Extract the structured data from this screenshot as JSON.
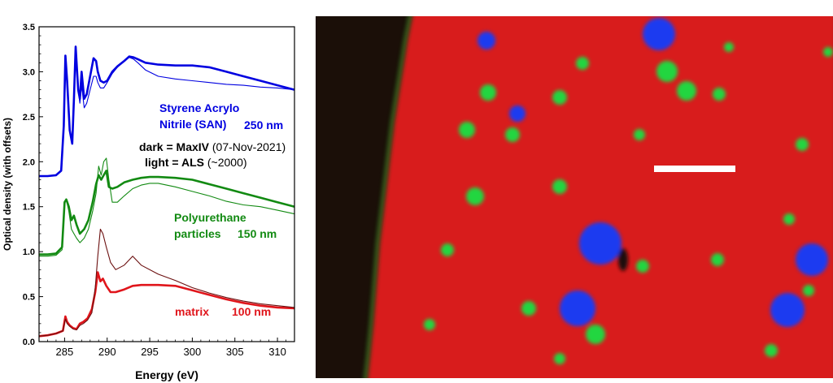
{
  "chart_data": {
    "type": "line",
    "xlabel": "Energy (eV)",
    "ylabel": "Optical density (with offsets)",
    "xlim": [
      282,
      312
    ],
    "ylim": [
      0,
      3.5
    ],
    "xticks": [
      285,
      290,
      295,
      300,
      305,
      310
    ],
    "yticks": [
      0.0,
      0.5,
      1.0,
      1.5,
      2.0,
      2.5,
      3.0,
      3.5
    ],
    "ytick_labels": [
      "0.0",
      "0.5",
      "1.0",
      "1.5",
      "2.0",
      "2.5",
      "3.0",
      "3.5"
    ],
    "grid": false,
    "annotations": {
      "san_line1": "Styrene Acrylo",
      "san_line2": "Nitrile (SAN)",
      "san_thickness": "250 nm",
      "dark_bold": "dark = MaxIV",
      "dark_rest": " (07-Nov-2021)",
      "light_bold": "light = ALS",
      "light_rest": " (~2000)",
      "pu_line1": "Polyurethane",
      "pu_line2": "particles",
      "pu_thickness": "150 nm",
      "matrix_label": "matrix",
      "matrix_thickness": "100 nm"
    },
    "series": [
      {
        "source": "MaxIV",
        "material": "SAN",
        "color": "#0000e0",
        "style": "thick",
        "x": [
          282,
          283,
          284,
          284.6,
          284.9,
          285.1,
          285.3,
          285.6,
          285.9,
          286.1,
          286.3,
          286.6,
          286.8,
          287.0,
          287.3,
          287.6,
          288.0,
          288.4,
          288.7,
          288.9,
          289.2,
          289.6,
          290.0,
          290.6,
          291.2,
          292.0,
          292.6,
          293.1,
          293.6,
          294.5,
          296,
          298,
          300,
          302,
          304,
          306,
          308,
          310,
          312
        ],
        "y": [
          1.84,
          1.84,
          1.85,
          1.9,
          2.4,
          3.18,
          2.9,
          2.35,
          2.2,
          2.7,
          3.28,
          2.8,
          2.7,
          3.0,
          2.7,
          2.75,
          2.95,
          3.15,
          3.12,
          3.0,
          2.9,
          2.88,
          2.9,
          3.0,
          3.06,
          3.12,
          3.17,
          3.16,
          3.14,
          3.1,
          3.08,
          3.07,
          3.07,
          3.05,
          3.0,
          2.95,
          2.9,
          2.85,
          2.8
        ]
      },
      {
        "source": "ALS",
        "material": "SAN",
        "color": "#0000e0",
        "style": "thin",
        "x": [
          282,
          283,
          284,
          284.6,
          284.9,
          285.1,
          285.3,
          285.6,
          285.9,
          286.1,
          286.3,
          286.6,
          286.8,
          287.0,
          287.3,
          287.6,
          288.0,
          288.4,
          288.7,
          288.9,
          289.2,
          289.6,
          290.0,
          290.6,
          291.2,
          292.0,
          292.6,
          293.1,
          293.6,
          294.5,
          296,
          298,
          300,
          302,
          304,
          306,
          308,
          310,
          312
        ],
        "y": [
          1.84,
          1.84,
          1.85,
          1.9,
          2.4,
          3.18,
          2.9,
          2.35,
          2.2,
          2.7,
          3.25,
          2.8,
          2.65,
          2.85,
          2.6,
          2.65,
          2.8,
          2.95,
          2.95,
          2.88,
          2.82,
          2.82,
          2.88,
          2.98,
          3.05,
          3.12,
          3.16,
          3.14,
          3.1,
          3.02,
          2.95,
          2.92,
          2.9,
          2.88,
          2.86,
          2.85,
          2.83,
          2.82,
          2.8
        ]
      },
      {
        "source": "MaxIV",
        "material": "Polyurethane",
        "color": "#128a12",
        "style": "thick",
        "x": [
          282,
          283,
          284,
          284.7,
          285.0,
          285.2,
          285.5,
          285.8,
          286.1,
          286.4,
          286.8,
          287.3,
          287.8,
          288.3,
          288.7,
          289.0,
          289.3,
          289.6,
          289.9,
          290.2,
          290.6,
          291.2,
          292,
          293,
          294,
          295,
          296,
          298,
          300,
          302,
          304,
          306,
          308,
          310,
          312
        ],
        "y": [
          0.97,
          0.97,
          0.98,
          1.05,
          1.55,
          1.58,
          1.5,
          1.35,
          1.4,
          1.3,
          1.2,
          1.25,
          1.35,
          1.55,
          1.75,
          1.85,
          1.8,
          1.85,
          1.9,
          1.72,
          1.7,
          1.72,
          1.77,
          1.8,
          1.82,
          1.83,
          1.83,
          1.82,
          1.8,
          1.75,
          1.7,
          1.65,
          1.6,
          1.55,
          1.5
        ]
      },
      {
        "source": "ALS",
        "material": "Polyurethane",
        "color": "#128a12",
        "style": "thin",
        "x": [
          282,
          283,
          284,
          284.7,
          285.0,
          285.2,
          285.5,
          285.8,
          286.1,
          286.4,
          286.8,
          287.3,
          287.8,
          288.3,
          288.7,
          289.0,
          289.3,
          289.6,
          289.9,
          290.2,
          290.6,
          291.2,
          292,
          293,
          294,
          295,
          296,
          298,
          300,
          302,
          304,
          306,
          308,
          310,
          312
        ],
        "y": [
          0.95,
          0.95,
          0.96,
          1.02,
          1.55,
          1.58,
          1.45,
          1.25,
          1.2,
          1.15,
          1.1,
          1.15,
          1.25,
          1.45,
          1.65,
          1.95,
          1.85,
          2.0,
          2.04,
          1.8,
          1.55,
          1.55,
          1.62,
          1.7,
          1.74,
          1.76,
          1.76,
          1.72,
          1.67,
          1.62,
          1.56,
          1.52,
          1.5,
          1.46,
          1.42
        ]
      },
      {
        "source": "MaxIV",
        "material": "matrix",
        "color": "#e0151b",
        "style": "thick",
        "x": [
          282,
          283,
          284,
          284.8,
          285.1,
          285.3,
          285.6,
          286.0,
          286.4,
          286.8,
          287.2,
          287.7,
          288.2,
          288.6,
          288.9,
          289.2,
          289.5,
          289.9,
          290.4,
          291,
          292,
          293,
          294,
          296,
          298,
          300,
          302,
          304,
          306,
          308,
          310,
          312
        ],
        "y": [
          0.06,
          0.07,
          0.09,
          0.12,
          0.28,
          0.22,
          0.18,
          0.15,
          0.14,
          0.2,
          0.22,
          0.26,
          0.36,
          0.55,
          0.77,
          0.67,
          0.7,
          0.62,
          0.55,
          0.55,
          0.58,
          0.62,
          0.63,
          0.63,
          0.62,
          0.57,
          0.52,
          0.47,
          0.43,
          0.4,
          0.38,
          0.37
        ]
      },
      {
        "source": "ALS",
        "material": "matrix",
        "color": "#6b0f0f",
        "style": "thin",
        "x": [
          282,
          283,
          284,
          284.8,
          285.1,
          285.3,
          285.6,
          286.0,
          286.4,
          286.8,
          287.2,
          287.7,
          288.2,
          288.6,
          288.9,
          289.2,
          289.5,
          289.9,
          290.4,
          291,
          292,
          293,
          294,
          296,
          298,
          300,
          302,
          304,
          306,
          308,
          310,
          312
        ],
        "y": [
          0.06,
          0.07,
          0.09,
          0.12,
          0.25,
          0.2,
          0.17,
          0.14,
          0.13,
          0.18,
          0.2,
          0.24,
          0.32,
          0.6,
          0.95,
          1.25,
          1.2,
          1.05,
          0.88,
          0.8,
          0.85,
          0.95,
          0.85,
          0.75,
          0.68,
          0.6,
          0.54,
          0.49,
          0.45,
          0.42,
          0.4,
          0.38
        ]
      }
    ]
  },
  "image_panel": {
    "colors": {
      "background_dark": "#1b0f08",
      "matrix": "#d81f1b",
      "polyurethane": "#20d640",
      "san": "#1d3bf0",
      "scale_bar": "#ffffff"
    }
  }
}
